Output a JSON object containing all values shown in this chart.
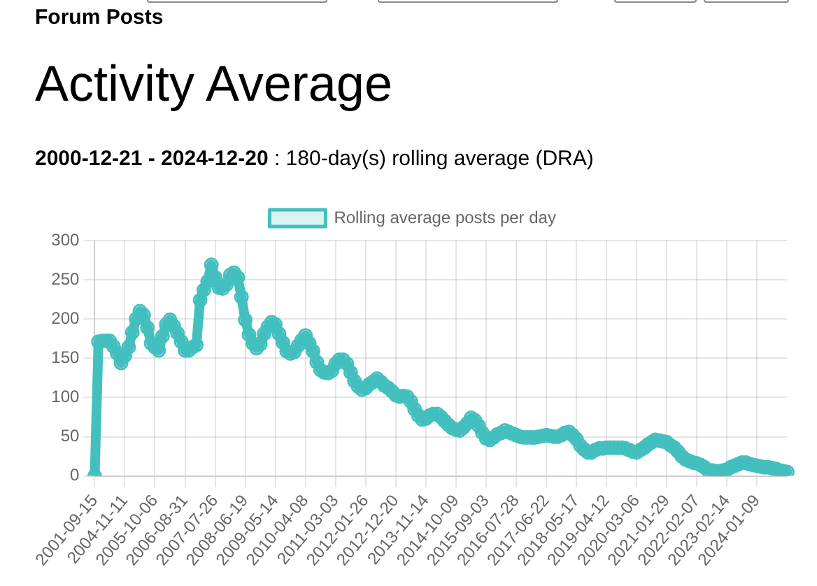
{
  "chart_data": {
    "type": "line",
    "annotations": [
      "Forum Posts"
    ],
    "title": "Activity Average",
    "subtitle": "2000-12-21 - 2024-12-20 : 180-day(s) rolling average (DRA)",
    "categories": [
      "2001-09-15",
      null,
      null,
      null,
      null,
      null,
      null,
      null,
      "2004-11-11",
      null,
      null,
      null,
      null,
      null,
      null,
      null,
      "2005-10-06",
      null,
      null,
      null,
      null,
      null,
      null,
      null,
      "2006-08-31",
      null,
      null,
      null,
      null,
      null,
      null,
      null,
      "2007-07-26",
      null,
      null,
      null,
      null,
      null,
      null,
      null,
      "2008-06-19",
      null,
      null,
      null,
      null,
      null,
      null,
      null,
      "2009-05-14",
      null,
      null,
      null,
      null,
      null,
      null,
      null,
      "2010-04-08",
      null,
      null,
      null,
      null,
      null,
      null,
      null,
      "2011-03-03",
      null,
      null,
      null,
      null,
      null,
      null,
      null,
      "2012-01-26",
      null,
      null,
      null,
      null,
      null,
      null,
      null,
      "2012-12-20",
      null,
      null,
      null,
      null,
      null,
      null,
      null,
      "2013-11-14",
      null,
      null,
      null,
      null,
      null,
      null,
      null,
      "2014-10-09",
      null,
      null,
      null,
      null,
      null,
      null,
      null,
      "2015-09-03",
      null,
      null,
      null,
      null,
      null,
      null,
      null,
      "2016-07-28",
      null,
      null,
      null,
      null,
      null,
      null,
      null,
      "2017-06-22",
      null,
      null,
      null,
      null,
      null,
      null,
      null,
      "2018-05-17",
      null,
      null,
      null,
      null,
      null,
      null,
      null,
      "2019-04-12",
      null,
      null,
      null,
      null,
      null,
      null,
      null,
      "2020-03-06",
      null,
      null,
      null,
      null,
      null,
      null,
      null,
      "2021-01-29",
      null,
      null,
      null,
      null,
      null,
      null,
      null,
      "2022-02-07",
      null,
      null,
      null,
      null,
      null,
      null,
      null,
      "2023-02-14",
      null,
      null,
      null,
      null,
      null,
      null,
      null,
      "2024-01-09",
      null,
      null,
      null,
      null,
      null,
      null,
      null,
      null
    ],
    "series": [
      {
        "name": "Rolling average posts per day",
        "color": "#43c0be",
        "values": [
          0,
          171,
          172,
          172,
          172,
          165,
          156,
          144,
          153,
          164,
          183,
          200,
          210,
          205,
          189,
          169,
          164,
          160,
          178,
          193,
          199,
          191,
          182,
          171,
          160,
          160,
          164,
          167,
          224,
          237,
          248,
          269,
          253,
          240,
          239,
          244,
          256,
          259,
          253,
          228,
          199,
          180,
          169,
          163,
          168,
          181,
          190,
          196,
          193,
          181,
          170,
          159,
          156,
          158,
          166,
          173,
          179,
          169,
          159,
          145,
          135,
          132,
          131,
          134,
          143,
          148,
          148,
          143,
          132,
          121,
          114,
          110,
          112,
          117,
          120,
          124,
          120,
          115,
          112,
          108,
          103,
          101,
          102,
          101,
          95,
          85,
          77,
          72,
          73,
          77,
          79,
          79,
          75,
          70,
          65,
          61,
          59,
          58,
          62,
          67,
          74,
          71,
          64,
          55,
          48,
          46,
          49,
          53,
          55,
          58,
          56,
          54,
          52,
          50,
          49,
          49,
          49,
          49,
          50,
          51,
          52,
          51,
          50,
          50,
          52,
          55,
          56,
          52,
          47,
          39,
          34,
          30,
          30,
          33,
          35,
          35,
          36,
          36,
          36,
          36,
          36,
          35,
          33,
          31,
          30,
          33,
          36,
          40,
          43,
          46,
          45,
          44,
          43,
          39,
          36,
          31,
          25,
          21,
          19,
          17,
          16,
          14,
          11,
          7,
          7,
          6,
          6,
          7,
          8,
          11,
          13,
          15,
          17,
          17,
          15,
          14,
          13,
          12,
          11,
          11,
          10,
          9,
          7,
          6,
          5
        ]
      }
    ],
    "ylim": [
      0,
      300
    ],
    "yticks": [
      0,
      50,
      100,
      150,
      200,
      250,
      300
    ],
    "grid": true,
    "legend": "top",
    "marker": "circle",
    "line_style": "solid"
  }
}
